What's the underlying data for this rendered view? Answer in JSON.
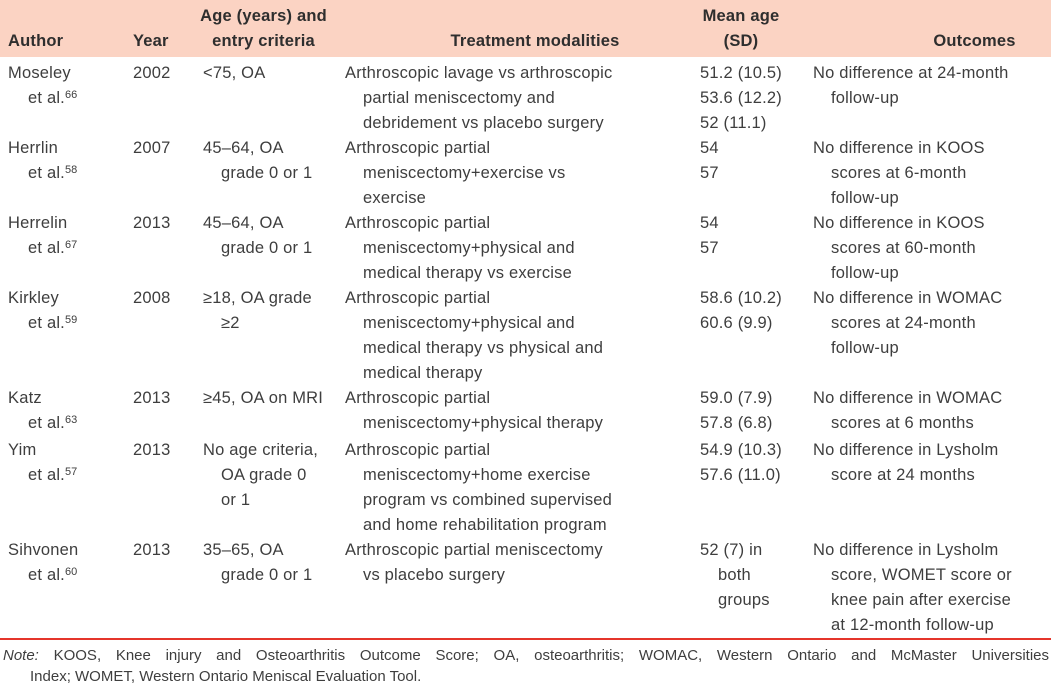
{
  "colors": {
    "header_bg": "#fbd3c3",
    "rule_red": "#e5352b",
    "text": "#3e3e3e"
  },
  "table": {
    "header": {
      "author": "Author",
      "year": "Year",
      "age_line1": "Age (years) and",
      "age_line2": "entry criteria",
      "treatment": "Treatment modalities",
      "mean_line1": "Mean age",
      "mean_line2": "(SD)",
      "outcomes": "Outcomes"
    },
    "rows": [
      {
        "author_name": "Moseley",
        "author_etal": "et al.",
        "author_ref": "66",
        "year": "2002",
        "age_lines": [
          "<75, OA"
        ],
        "treatment_lines": [
          "Arthroscopic lavage vs arthroscopic",
          "partial meniscectomy and",
          "debridement vs placebo surgery"
        ],
        "mean_age_lines": [
          "51.2 (10.5)",
          "53.6 (12.2)",
          "52 (11.1)"
        ],
        "mean_age_runover": false,
        "outcome_lines": [
          "No difference at 24-month",
          "follow-up"
        ]
      },
      {
        "author_name": "Herrlin",
        "author_etal": "et al.",
        "author_ref": "58",
        "year": "2007",
        "age_lines": [
          "45–64, OA",
          "grade 0 or 1"
        ],
        "treatment_lines": [
          "Arthroscopic partial",
          "meniscectomy+exercise vs",
          "exercise"
        ],
        "mean_age_lines": [
          "54",
          "57"
        ],
        "mean_age_runover": false,
        "outcome_lines": [
          "No difference in KOOS",
          "scores at 6-month",
          "follow-up"
        ]
      },
      {
        "author_name": "Herrelin",
        "author_etal": "et al.",
        "author_ref": "67",
        "year": "2013",
        "age_lines": [
          "45–64, OA",
          "grade 0 or 1"
        ],
        "treatment_lines": [
          "Arthroscopic partial",
          "meniscectomy+physical and",
          "medical therapy vs exercise"
        ],
        "mean_age_lines": [
          "54",
          "57"
        ],
        "mean_age_runover": false,
        "outcome_lines": [
          "No difference in KOOS",
          "scores at 60-month",
          "follow-up"
        ]
      },
      {
        "author_name": "Kirkley",
        "author_etal": "et al.",
        "author_ref": "59",
        "year": "2008",
        "age_lines": [
          "≥18, OA grade",
          "≥2"
        ],
        "treatment_lines": [
          "Arthroscopic partial",
          "meniscectomy+physical and",
          "medical therapy vs physical and",
          "medical therapy"
        ],
        "mean_age_lines": [
          "58.6 (10.2)",
          "60.6 (9.9)"
        ],
        "mean_age_runover": false,
        "outcome_lines": [
          "No difference in WOMAC",
          "scores at 24-month",
          "follow-up"
        ]
      },
      {
        "author_name": "Katz",
        "author_etal": "et al.",
        "author_ref": "63",
        "year": "2013",
        "age_lines": [
          "≥45, OA on MRI"
        ],
        "treatment_lines": [
          "Arthroscopic partial",
          "meniscectomy+physical therapy"
        ],
        "mean_age_lines": [
          "59.0 (7.9)",
          "57.8 (6.8)"
        ],
        "mean_age_runover": false,
        "outcome_lines": [
          "No difference in WOMAC",
          "scores at 6 months"
        ]
      },
      {
        "author_name": "Yim",
        "author_etal": "et al.",
        "author_ref": "57",
        "year": "2013",
        "age_lines": [
          "No age criteria,",
          "OA grade 0",
          "or 1"
        ],
        "treatment_lines": [
          "Arthroscopic partial",
          "meniscectomy+home exercise",
          "program vs combined supervised",
          "and home rehabilitation program"
        ],
        "mean_age_lines": [
          "54.9 (10.3)",
          "57.6 (11.0)"
        ],
        "mean_age_runover": false,
        "outcome_lines": [
          "No difference in Lysholm",
          "score at 24 months"
        ]
      },
      {
        "author_name": "Sihvonen",
        "author_etal": "et al.",
        "author_ref": "60",
        "year": "2013",
        "age_lines": [
          "35–65, OA",
          "grade 0 or 1"
        ],
        "treatment_lines": [
          "Arthroscopic partial meniscectomy",
          "vs placebo surgery"
        ],
        "mean_age_lines": [
          "52 (7) in",
          "both",
          "groups"
        ],
        "mean_age_runover": true,
        "outcome_lines": [
          "No difference in Lysholm",
          "score, WOMET score or",
          "knee pain after exercise",
          "at 12-month follow-up"
        ]
      }
    ]
  },
  "note": {
    "label": "Note:",
    "line1": "KOOS, Knee injury and Osteoarthritis Outcome Score; OA, osteoarthritis; WOMAC, Western Ontario and McMaster Universities",
    "line2": "Index; WOMET, Western Ontario Meniscal Evaluation Tool."
  }
}
